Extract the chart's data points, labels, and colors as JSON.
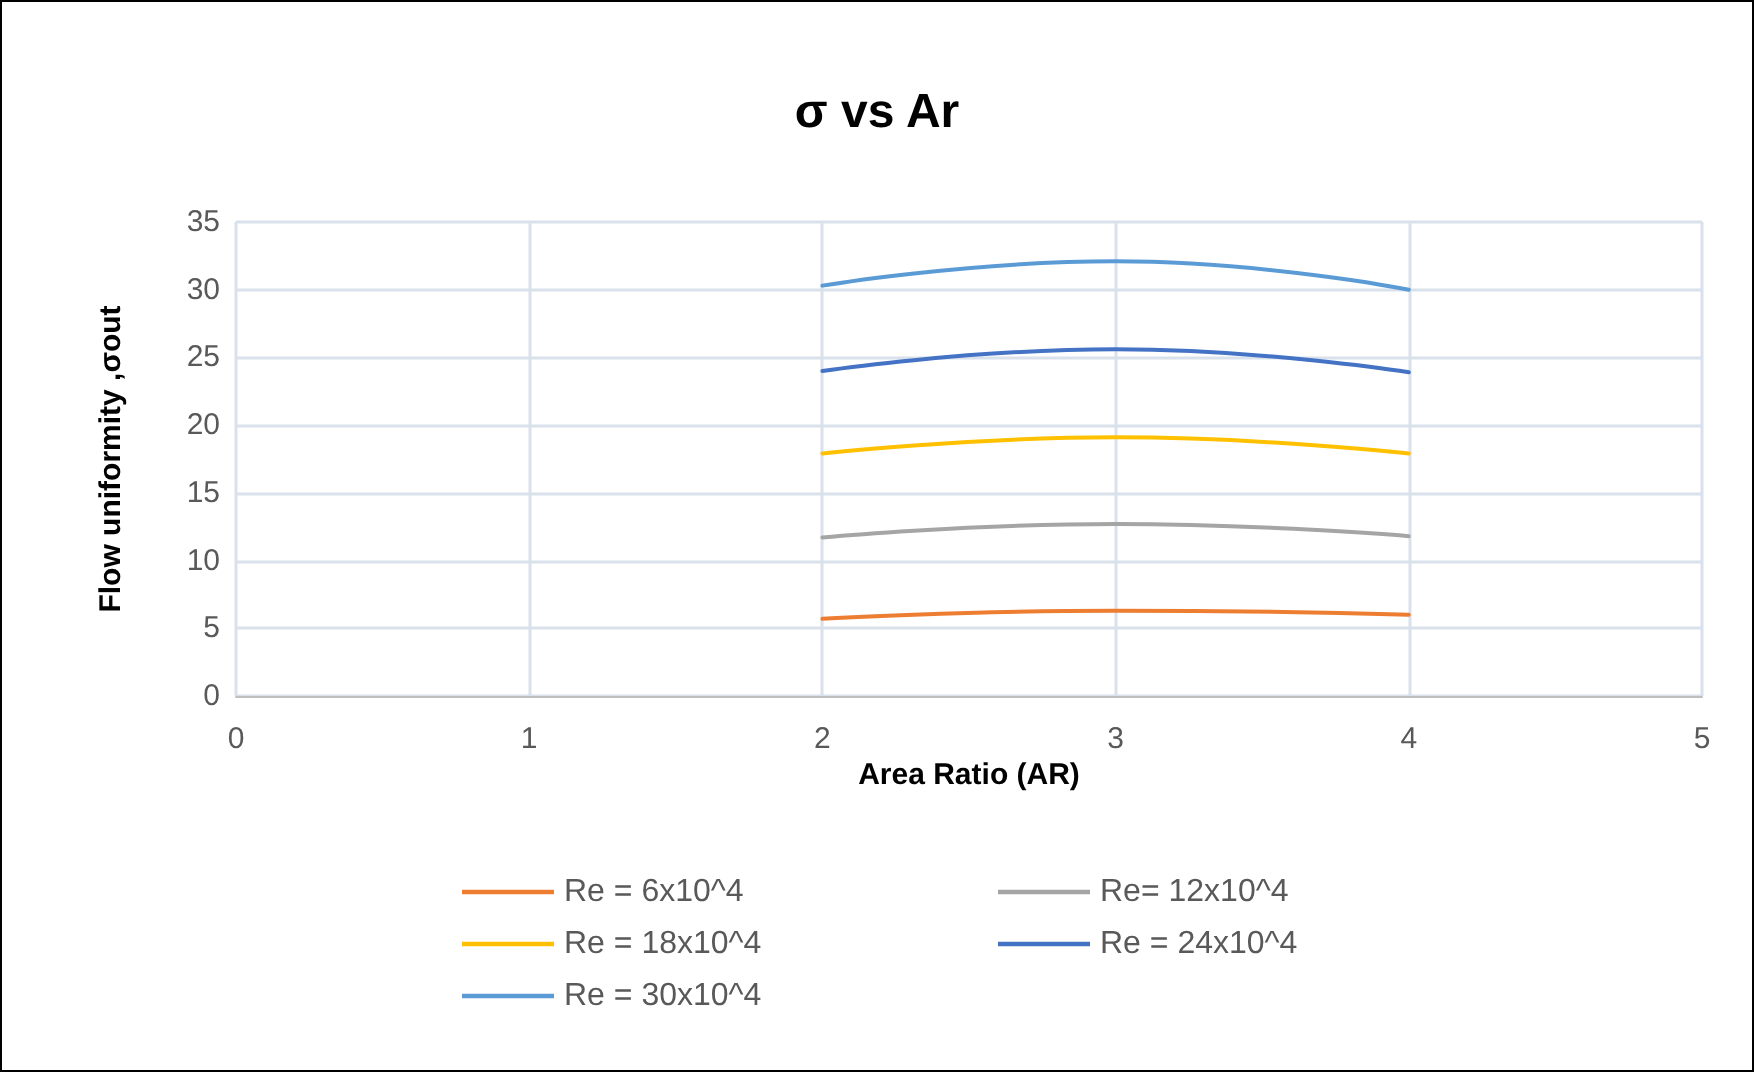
{
  "chart_data": {
    "type": "line",
    "title": "σ vs Ar",
    "xlabel": "Area Ratio (AR)",
    "ylabel": "Flow uniformity ,σout",
    "xlim": [
      0,
      5
    ],
    "xticks": [
      0,
      1,
      2,
      3,
      4,
      5
    ],
    "ylim": [
      0,
      35
    ],
    "yticks": [
      0,
      5,
      10,
      15,
      20,
      25,
      30,
      35
    ],
    "grid": true,
    "legend": "bottom",
    "marker": "none",
    "line_style": "solid",
    "x": [
      2,
      3,
      4
    ],
    "series": [
      {
        "name": "Re = 6x10^4",
        "color": "#ed7d31",
        "values": [
          5.7,
          6.3,
          6.0
        ]
      },
      {
        "name": "Re= 12x10^4",
        "color": "#a5a5a5",
        "values": [
          11.7,
          12.7,
          11.8
        ]
      },
      {
        "name": "Re = 18x10^4",
        "color": "#ffc000",
        "values": [
          17.9,
          19.1,
          17.9
        ]
      },
      {
        "name": "Re = 24x10^4",
        "color": "#4472c4",
        "values": [
          24.0,
          25.6,
          23.9
        ]
      },
      {
        "name": "Re = 30x10^4",
        "color": "#5b9bd5",
        "values": [
          30.3,
          32.1,
          30.0
        ]
      }
    ]
  }
}
